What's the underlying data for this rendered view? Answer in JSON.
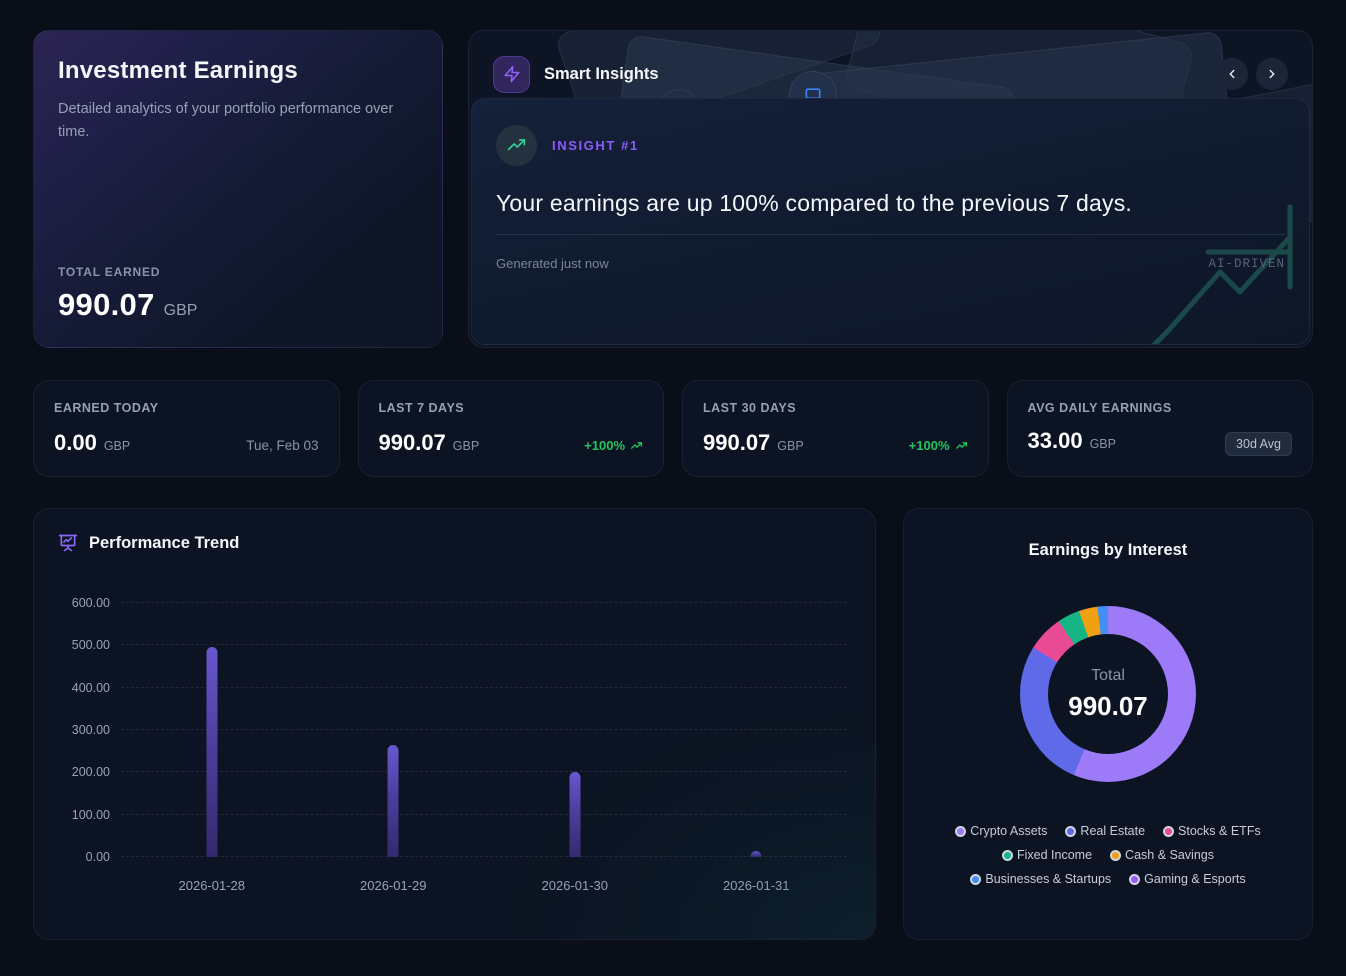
{
  "hero": {
    "title": "Investment Earnings",
    "subtitle": "Detailed analytics of your portfolio performance over time.",
    "total_label": "TOTAL EARNED",
    "total_value": "990.07",
    "currency": "GBP"
  },
  "insights": {
    "title": "Smart Insights",
    "badge": "INSIGHT #1",
    "headline": "Your earnings are up 100% compared to the previous 7 days.",
    "generated": "Generated just now",
    "tag": "AI-DRIVEN",
    "icons": [
      "zap-icon",
      "trending-up-icon",
      "chevron-left-icon",
      "chevron-right-icon"
    ]
  },
  "stats": [
    {
      "label": "EARNED TODAY",
      "value": "0.00",
      "currency": "GBP",
      "extra": "Tue, Feb 03"
    },
    {
      "label": "LAST 7 DAYS",
      "value": "990.07",
      "currency": "GBP",
      "extra": "+100%"
    },
    {
      "label": "LAST 30 DAYS",
      "value": "990.07",
      "currency": "GBP",
      "extra": "+100%"
    },
    {
      "label": "AVG DAILY EARNINGS",
      "value": "33.00",
      "currency": "GBP",
      "extra": "30d Avg"
    }
  ],
  "colors": {
    "accent_purple": "#8b5cf6",
    "positive_green": "#22c55e",
    "bar_purple": "#4c3f9e",
    "watermark_teal": "#1f5a54"
  },
  "chart_data": [
    {
      "type": "bar",
      "title": "Performance Trend",
      "categories": [
        "2026-01-28",
        "2026-01-29",
        "2026-01-30",
        "2026-01-31"
      ],
      "values": [
        495,
        265,
        200,
        15
      ],
      "ylim": [
        0,
        600
      ],
      "yticks": [
        {
          "value": 600,
          "label": "600.00"
        },
        {
          "value": 500,
          "label": "500.00"
        },
        {
          "value": 400,
          "label": "400.00"
        },
        {
          "value": 300,
          "label": "300.00"
        },
        {
          "value": 200,
          "label": "200.00"
        },
        {
          "value": 100,
          "label": "100.00"
        },
        {
          "value": 0,
          "label": "0.00"
        }
      ],
      "grid": "horizontal-dashed",
      "legend_position": "none"
    },
    {
      "type": "pie",
      "subtype": "donut",
      "title": "Earnings by Interest",
      "center_label": "Total",
      "center_value": "990.07",
      "legend_position": "bottom",
      "segments": [
        {
          "name": "Crypto Assets",
          "value": 558,
          "color": "#9d7bf8"
        },
        {
          "name": "Real Estate",
          "value": 272,
          "color": "#5f6ae8"
        },
        {
          "name": "Stocks & ETFs",
          "value": 66,
          "color": "#e84a94"
        },
        {
          "name": "Fixed Income",
          "value": 41,
          "color": "#17b583"
        },
        {
          "name": "Cash & Savings",
          "value": 34,
          "color": "#f0a013"
        },
        {
          "name": "Businesses & Startups",
          "value": 18,
          "color": "#4090f5"
        },
        {
          "name": "Gaming & Esports",
          "value": 1,
          "color": "#9b59f5"
        }
      ]
    }
  ]
}
